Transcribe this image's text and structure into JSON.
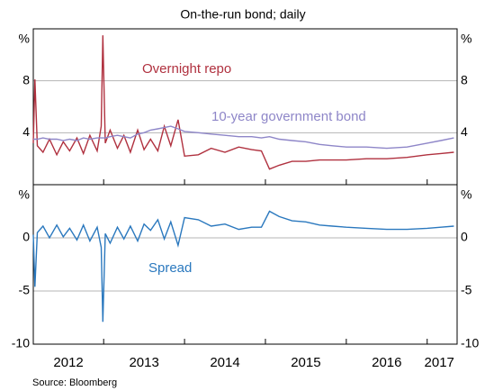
{
  "chart_data": [
    {
      "type": "line",
      "subtitle": "On-the-run bond; daily",
      "unit": "%",
      "x": [
        2012.13,
        2012.15,
        2012.18,
        2012.25,
        2012.33,
        2012.42,
        2012.5,
        2012.58,
        2012.67,
        2012.75,
        2012.83,
        2012.92,
        2012.97,
        2012.99,
        2013.02,
        2013.08,
        2013.17,
        2013.25,
        2013.33,
        2013.42,
        2013.5,
        2013.58,
        2013.67,
        2013.75,
        2013.83,
        2013.92,
        2014.0,
        2014.17,
        2014.33,
        2014.5,
        2014.67,
        2014.83,
        2014.95,
        2015.05,
        2015.17,
        2015.33,
        2015.5,
        2015.67,
        2015.83,
        2016.0,
        2016.25,
        2016.5,
        2016.75,
        2017.0,
        2017.17,
        2017.33
      ],
      "xlim": [
        2012.13,
        2017.37
      ],
      "xticks": [
        2013,
        2014,
        2015,
        2016,
        2017
      ],
      "ylim": [
        0,
        12
      ],
      "yticks": [
        4,
        8
      ],
      "grid": true,
      "series": [
        {
          "name": "Overnight repo",
          "color": "#b0313f",
          "values": [
            3.2,
            8.1,
            3.0,
            2.5,
            3.5,
            2.3,
            3.3,
            2.6,
            3.6,
            2.4,
            3.8,
            2.6,
            4.5,
            11.5,
            3.2,
            4.2,
            2.8,
            3.8,
            2.5,
            4.2,
            2.7,
            3.5,
            2.6,
            4.5,
            3.0,
            5.0,
            2.2,
            2.3,
            2.8,
            2.5,
            2.9,
            2.7,
            2.6,
            1.2,
            1.5,
            1.8,
            1.8,
            1.9,
            1.9,
            1.9,
            2.0,
            2.0,
            2.1,
            2.3,
            2.4,
            2.5
          ]
        },
        {
          "name": "10-year government bond",
          "color": "#8e86c8",
          "values": [
            3.5,
            3.5,
            3.5,
            3.6,
            3.5,
            3.5,
            3.4,
            3.5,
            3.4,
            3.6,
            3.5,
            3.6,
            3.6,
            3.6,
            3.6,
            3.7,
            3.8,
            3.7,
            3.6,
            3.9,
            4.0,
            4.2,
            4.3,
            4.4,
            4.5,
            4.3,
            4.1,
            4.0,
            3.9,
            3.8,
            3.7,
            3.7,
            3.6,
            3.7,
            3.5,
            3.4,
            3.3,
            3.1,
            3.0,
            2.9,
            2.9,
            2.8,
            2.9,
            3.2,
            3.4,
            3.6
          ]
        }
      ]
    },
    {
      "type": "line",
      "unit": "%",
      "source": "Source:   Bloomberg",
      "x": [
        2012.13,
        2012.15,
        2012.18,
        2012.25,
        2012.33,
        2012.42,
        2012.5,
        2012.58,
        2012.67,
        2012.75,
        2012.83,
        2012.92,
        2012.97,
        2012.99,
        2013.02,
        2013.08,
        2013.17,
        2013.25,
        2013.33,
        2013.42,
        2013.5,
        2013.58,
        2013.67,
        2013.75,
        2013.83,
        2013.92,
        2014.0,
        2014.17,
        2014.33,
        2014.5,
        2014.67,
        2014.83,
        2014.95,
        2015.05,
        2015.17,
        2015.33,
        2015.5,
        2015.67,
        2015.83,
        2016.0,
        2016.25,
        2016.5,
        2016.75,
        2017.0,
        2017.17,
        2017.33
      ],
      "xlim": [
        2012.13,
        2017.37
      ],
      "xticks": [
        2013,
        2014,
        2015,
        2016,
        2017
      ],
      "year_labels": [
        2012,
        2013,
        2014,
        2015,
        2016,
        2017
      ],
      "ylim": [
        -10,
        5
      ],
      "yticks": [
        -10,
        -5,
        0
      ],
      "grid": true,
      "series": [
        {
          "name": "Spread",
          "color": "#2a78be",
          "values": [
            0.3,
            -4.6,
            0.5,
            1.1,
            0,
            1.2,
            0.1,
            0.9,
            -0.2,
            1.2,
            -0.3,
            1.0,
            -0.9,
            -7.9,
            0.4,
            -0.5,
            1.0,
            -0.1,
            1.1,
            -0.3,
            1.3,
            0.7,
            1.7,
            -0.1,
            1.5,
            -0.7,
            1.9,
            1.7,
            1.1,
            1.3,
            0.8,
            1.0,
            1.0,
            2.5,
            2.0,
            1.6,
            1.5,
            1.2,
            1.1,
            1.0,
            0.9,
            0.8,
            0.8,
            0.9,
            1.0,
            1.1
          ]
        }
      ]
    }
  ]
}
